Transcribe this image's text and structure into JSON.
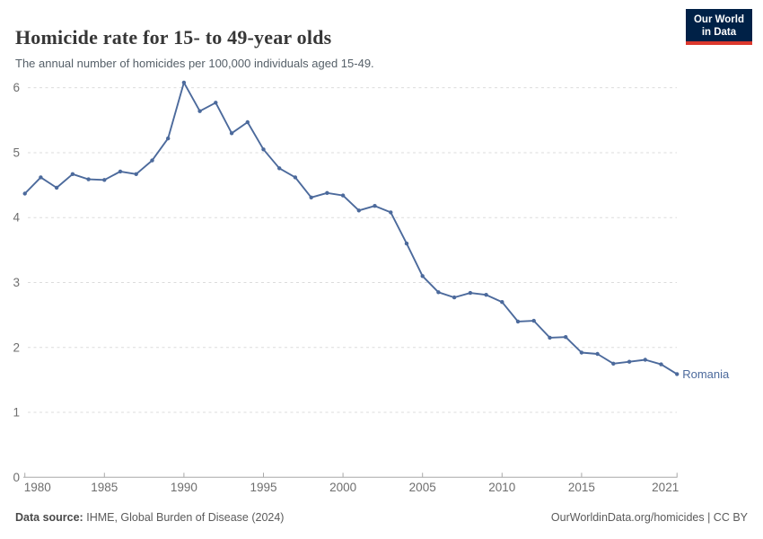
{
  "header": {
    "title": "Homicide rate for 15- to 49-year olds",
    "subtitle": "The annual number of homicides per 100,000 individuals aged 15-49."
  },
  "logo": {
    "line1": "Our World",
    "line2": "in Data",
    "bg_color": "#002147",
    "bar_color": "#dc382d"
  },
  "chart_data": {
    "type": "line",
    "title": "Homicide rate for 15- to 49-year olds",
    "subtitle": "The annual number of homicides per 100,000 individuals aged 15-49.",
    "xlabel": "",
    "ylabel": "",
    "ylim": [
      0,
      6
    ],
    "y_ticks": [
      0,
      1,
      2,
      3,
      4,
      5,
      6
    ],
    "x_ticks": [
      1980,
      1985,
      1990,
      1995,
      2000,
      2005,
      2010,
      2015,
      2021
    ],
    "grid": "dashed-horizontal",
    "legend_position": "end-of-line-label",
    "series": [
      {
        "name": "Romania",
        "color": "#4c6a9c",
        "x": [
          1980,
          1981,
          1982,
          1983,
          1984,
          1985,
          1986,
          1987,
          1988,
          1989,
          1990,
          1991,
          1992,
          1993,
          1994,
          1995,
          1996,
          1997,
          1998,
          1999,
          2000,
          2001,
          2002,
          2003,
          2004,
          2005,
          2006,
          2007,
          2008,
          2009,
          2010,
          2011,
          2012,
          2013,
          2014,
          2015,
          2016,
          2017,
          2018,
          2019,
          2020,
          2021
        ],
        "values": [
          4.37,
          4.62,
          4.46,
          4.67,
          4.59,
          4.58,
          4.71,
          4.67,
          4.88,
          5.22,
          6.08,
          5.64,
          5.77,
          5.3,
          5.47,
          5.05,
          4.76,
          4.62,
          4.31,
          4.38,
          4.34,
          4.11,
          4.18,
          4.08,
          3.6,
          3.1,
          2.85,
          2.77,
          2.84,
          2.81,
          2.7,
          2.4,
          2.41,
          2.15,
          2.16,
          1.92,
          1.9,
          1.75,
          1.78,
          1.81,
          1.74,
          1.59
        ]
      }
    ]
  },
  "footer": {
    "data_source_label": "Data source:",
    "data_source_value": "IHME, Global Burden of Disease (2024)",
    "right_text": "OurWorldinData.org/homicides | CC BY"
  },
  "colors": {
    "accent_line": "#4c6a9c",
    "grid": "#dcdcdc",
    "axis": "#a8a8a8",
    "tick_text": "#6e6e6e",
    "title_text": "#373737",
    "subtitle_text": "#566069",
    "footer_text": "#5b5b5b"
  }
}
